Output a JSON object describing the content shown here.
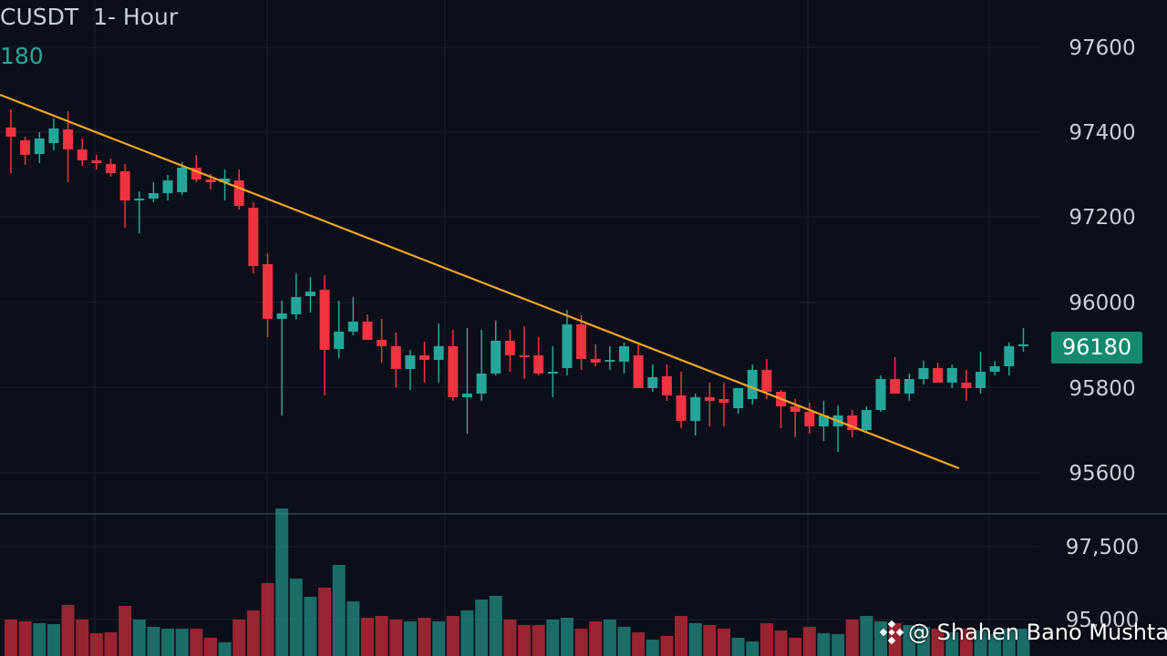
{
  "header": {
    "pair": "CUSDT",
    "interval": "1- Hour",
    "last_price": "180"
  },
  "price_badge": "96180",
  "watermark": {
    "handle": "@ Shahen Bano Mushtaq",
    "logo_icon": "binance-logo-icon"
  },
  "colors": {
    "background": "#0b0f19",
    "up": "#26a69a",
    "down": "#ef3340",
    "trendline": "#f5a623",
    "grid": "#1c2130",
    "badge": "#138a6e"
  },
  "chart_data": [
    {
      "type": "candlestick",
      "y_axis_ticks": [
        "97600",
        "97400",
        "97200",
        "96000",
        "95800",
        "95600"
      ],
      "series": [
        {
          "name": "",
          "candles": [
            [
              140,
              120,
              190,
              150
            ],
            [
              154,
              150,
              181,
              170
            ],
            [
              169,
              145,
              179,
              152
            ],
            [
              157,
              130,
              165,
              141
            ],
            [
              142,
              122,
              200,
              164
            ],
            [
              164,
              152,
              182,
              176
            ],
            [
              176,
              170,
              186,
              179
            ],
            [
              180,
              174,
              194,
              190
            ],
            [
              188,
              180,
              250,
              220
            ],
            [
              220,
              210,
              256,
              218
            ],
            [
              218,
              200,
              222,
              212
            ],
            [
              212,
              192,
              220,
              198
            ],
            [
              211,
              178,
              214,
              184
            ],
            [
              184,
              170,
              200,
              197
            ],
            [
              197,
              191,
              208,
              200
            ],
            [
              200,
              186,
              220,
              196
            ],
            [
              198,
              186,
              230,
              226
            ],
            [
              228,
              222,
              300,
              292
            ],
            [
              290,
              278,
              370,
              350
            ],
            [
              350,
              330,
              456,
              344
            ],
            [
              345,
              300,
              350,
              326
            ],
            [
              325,
              304,
              343,
              320
            ],
            [
              318,
              302,
              434,
              384
            ],
            [
              383,
              330,
              393,
              364
            ],
            [
              364,
              326,
              368,
              353
            ],
            [
              353,
              345,
              372,
              373
            ],
            [
              373,
              350,
              398,
              380
            ],
            [
              380,
              365,
              425,
              405
            ],
            [
              405,
              384,
              428,
              390
            ],
            [
              390,
              375,
              420,
              395
            ],
            [
              395,
              355,
              420,
              380
            ],
            [
              380,
              362,
              440,
              436
            ],
            [
              436,
              360,
              476,
              432
            ],
            [
              432,
              362,
              440,
              410
            ],
            [
              410,
              352,
              412,
              374
            ],
            [
              374,
              362,
              408,
              390
            ],
            [
              390,
              358,
              416,
              390
            ],
            [
              390,
              370,
              412,
              410
            ],
            [
              410,
              380,
              436,
              408
            ],
            [
              404,
              340,
              412,
              356
            ],
            [
              356,
              346,
              406,
              394
            ],
            [
              394,
              378,
              402,
              398
            ],
            [
              397,
              380,
              406,
              395
            ],
            [
              397,
              376,
              410,
              380
            ],
            [
              390,
              378,
              408,
              426
            ],
            [
              426,
              400,
              430,
              414
            ],
            [
              413,
              400,
              440,
              434
            ],
            [
              434,
              408,
              470,
              462
            ],
            [
              462,
              432,
              478,
              436
            ],
            [
              436,
              420,
              468,
              440
            ],
            [
              438,
              420,
              468,
              442
            ],
            [
              448,
              430,
              454,
              426
            ],
            [
              438,
              400,
              444,
              406
            ],
            [
              406,
              394,
              438,
              430
            ],
            [
              430,
              428,
              470,
              446
            ],
            [
              446,
              438,
              480,
              452
            ],
            [
              452,
              442,
              476,
              468
            ],
            [
              468,
              440,
              484,
              456
            ],
            [
              468,
              445,
              496,
              456
            ],
            [
              456,
              450,
              480,
              472
            ],
            [
              472,
              446,
              474,
              450
            ],
            [
              450,
              412,
              452,
              416
            ],
            [
              416,
              392,
              432,
              432
            ],
            [
              432,
              410,
              440,
              416
            ],
            [
              416,
              396,
              422,
              404
            ],
            [
              404,
              398,
              418,
              420
            ],
            [
              420,
              400,
              426,
              404
            ],
            [
              420,
              406,
              440,
              426
            ],
            [
              426,
              386,
              432,
              408
            ],
            [
              408,
              396,
              412,
              402
            ],
            [
              402,
              376,
              412,
              380
            ],
            [
              380,
              360,
              386,
              378
            ]
          ]
        }
      ]
    },
    {
      "type": "bar",
      "y_axis_ticks": [
        "97,500",
        "95,000"
      ],
      "series": [
        {
          "name": "",
          "values": [
            40,
            38,
            36,
            35,
            56,
            40,
            25,
            26,
            55,
            40,
            32,
            30,
            30,
            30,
            20,
            15,
            40,
            50,
            80,
            162,
            85,
            65,
            75,
            100,
            60,
            42,
            44,
            40,
            38,
            42,
            38,
            44,
            50,
            62,
            66,
            40,
            34,
            34,
            40,
            42,
            30,
            38,
            40,
            32,
            26,
            18,
            22,
            44,
            36,
            34,
            30,
            20,
            16,
            36,
            28,
            20,
            32,
            25,
            24,
            40,
            44,
            38,
            36,
            34,
            32,
            30,
            26,
            30,
            28,
            24,
            30,
            30
          ]
        }
      ]
    }
  ]
}
